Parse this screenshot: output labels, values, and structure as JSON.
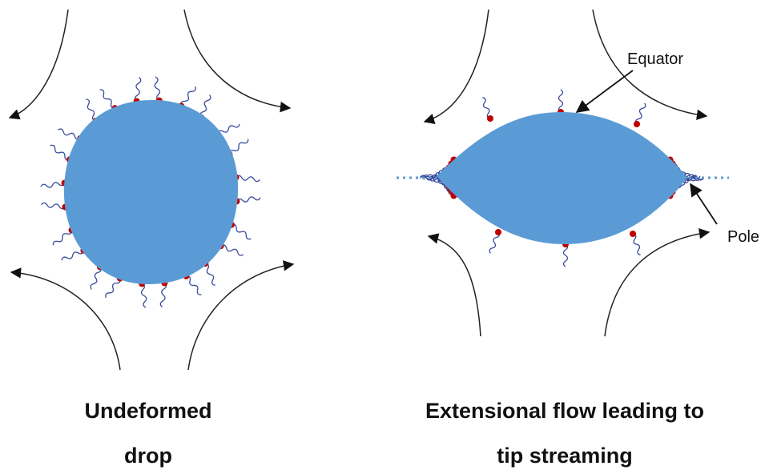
{
  "annotations": {
    "equator": "Equator",
    "pole": "Pole"
  },
  "captions": {
    "left": [
      "Undeformed",
      "drop"
    ],
    "right": [
      "Extensional flow leading to",
      "tip streaming"
    ]
  }
}
